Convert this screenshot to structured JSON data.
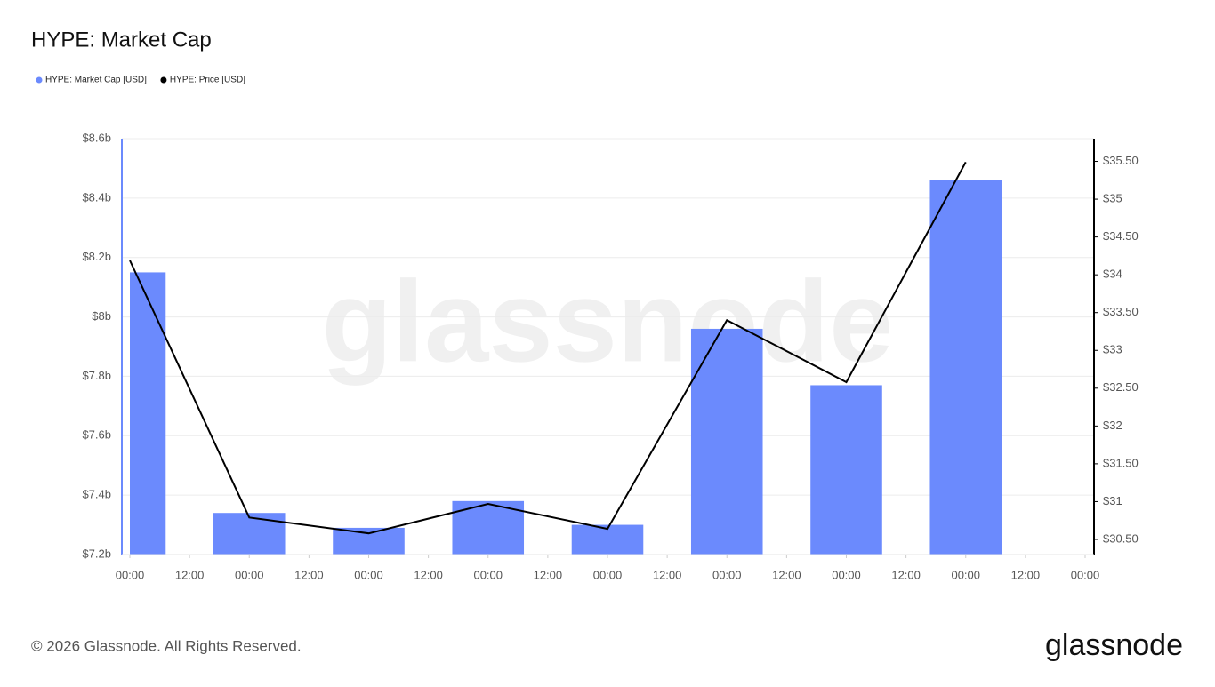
{
  "chart_data": {
    "type": "bar",
    "title": "HYPE: Market Cap",
    "legend": "top-left",
    "grid": true,
    "watermark": "glassnode",
    "footer": "© 2026 Glassnode. All Rights Reserved.",
    "logo": "glassnode",
    "x": [
      0,
      24,
      48,
      72,
      96,
      120,
      144,
      168
    ],
    "xlim": [
      0,
      192
    ],
    "xticks": [
      {
        "value": 0,
        "label": "00:00"
      },
      {
        "value": 12,
        "label": "12:00"
      },
      {
        "value": 24,
        "label": "00:00"
      },
      {
        "value": 36,
        "label": "12:00"
      },
      {
        "value": 48,
        "label": "00:00"
      },
      {
        "value": 60,
        "label": "12:00"
      },
      {
        "value": 72,
        "label": "00:00"
      },
      {
        "value": 84,
        "label": "12:00"
      },
      {
        "value": 96,
        "label": "00:00"
      },
      {
        "value": 108,
        "label": "12:00"
      },
      {
        "value": 120,
        "label": "00:00"
      },
      {
        "value": 132,
        "label": "12:00"
      },
      {
        "value": 144,
        "label": "00:00"
      },
      {
        "value": 156,
        "label": "12:00"
      },
      {
        "value": 168,
        "label": "00:00"
      },
      {
        "value": 180,
        "label": "12:00"
      },
      {
        "value": 192,
        "label": "00:00"
      }
    ],
    "ylim": [
      7200000000,
      8600000000
    ],
    "yticks": [
      {
        "value": 7200000000,
        "label": "$7.2b"
      },
      {
        "value": 7400000000,
        "label": "$7.4b"
      },
      {
        "value": 7600000000,
        "label": "$7.6b"
      },
      {
        "value": 7800000000,
        "label": "$7.8b"
      },
      {
        "value": 8000000000,
        "label": "$8b"
      },
      {
        "value": 8200000000,
        "label": "$8.2b"
      },
      {
        "value": 8400000000,
        "label": "$8.4b"
      },
      {
        "value": 8600000000,
        "label": "$8.6b"
      }
    ],
    "y2lim": [
      30.3,
      35.8
    ],
    "y2ticks": [
      {
        "value": 30.5,
        "label": "$30.50"
      },
      {
        "value": 31,
        "label": "$31"
      },
      {
        "value": 31.5,
        "label": "$31.50"
      },
      {
        "value": 32,
        "label": "$32"
      },
      {
        "value": 32.5,
        "label": "$32.50"
      },
      {
        "value": 33,
        "label": "$33"
      },
      {
        "value": 33.5,
        "label": "$33.50"
      },
      {
        "value": 34,
        "label": "$34"
      },
      {
        "value": 34.5,
        "label": "$34.50"
      },
      {
        "value": 35,
        "label": "$35"
      },
      {
        "value": 35.5,
        "label": "$35.50"
      }
    ],
    "series": [
      {
        "name": "HYPE: Market Cap [USD]",
        "type": "bar",
        "color": "#6b8afd",
        "values": [
          8150000000,
          7340000000,
          7290000000,
          7380000000,
          7300000000,
          7960000000,
          7770000000,
          8460000000
        ]
      },
      {
        "name": "HYPE: Price [USD]",
        "type": "line",
        "axis": "y2",
        "color": "#000000",
        "values": [
          34.19,
          30.79,
          30.58,
          30.97,
          30.64,
          33.4,
          32.58,
          35.49
        ]
      }
    ]
  }
}
